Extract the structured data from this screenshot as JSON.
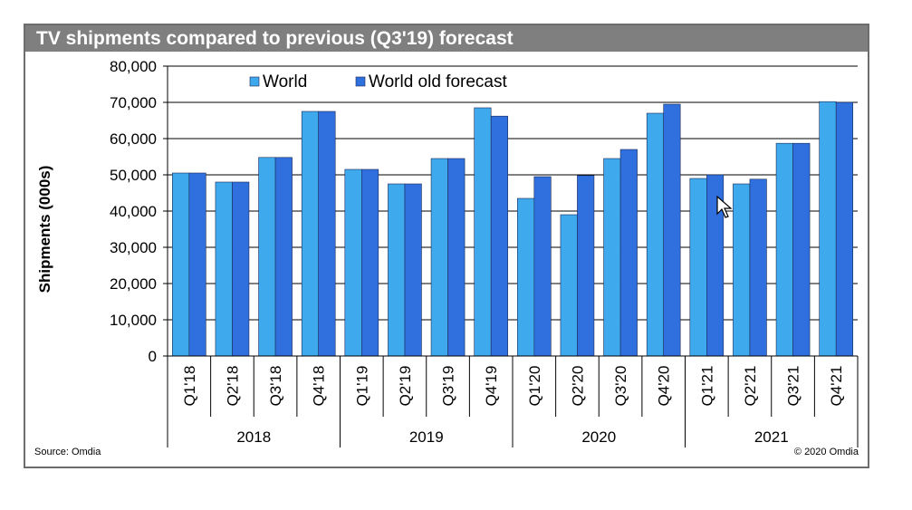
{
  "title": "TV shipments compared to previous (Q3'19) forecast",
  "source": "Source: Omdia",
  "copyright": "© 2020 Omdia",
  "colors": {
    "world": "#3fa9ee",
    "world_old_forecast": "#2f6fde",
    "title_bar": "#7f7f7f"
  },
  "chart_data": {
    "type": "bar",
    "title": "TV shipments compared to previous (Q3'19) forecast",
    "ylabel": "Shipments (000s)",
    "xlabel": "",
    "ylim": [
      0,
      80000
    ],
    "yticks": [
      "0",
      "10,000",
      "20,000",
      "30,000",
      "40,000",
      "50,000",
      "60,000",
      "70,000",
      "80,000"
    ],
    "categories": [
      "Q1'18",
      "Q2'18",
      "Q3'18",
      "Q4'18",
      "Q1'19",
      "Q2'19",
      "Q3'19",
      "Q4'19",
      "Q1'20",
      "Q2'20",
      "Q3'20",
      "Q4'20",
      "Q1'21",
      "Q2'21",
      "Q3'21",
      "Q4'21"
    ],
    "groups": [
      {
        "label": "2018",
        "count": 4
      },
      {
        "label": "2019",
        "count": 4
      },
      {
        "label": "2020",
        "count": 4
      },
      {
        "label": "2021",
        "count": 4
      }
    ],
    "series": [
      {
        "name": "World",
        "values": [
          50500,
          48000,
          54800,
          67500,
          51500,
          47500,
          54500,
          68500,
          43500,
          39000,
          54500,
          67000,
          49000,
          47500,
          58700,
          70200
        ]
      },
      {
        "name": "World old forecast",
        "values": [
          50500,
          48000,
          54800,
          67500,
          51500,
          47500,
          54500,
          66200,
          49500,
          49800,
          57000,
          69500,
          50000,
          48800,
          58700,
          70000
        ]
      }
    ],
    "legend": "top-left inside plot",
    "grid": true
  }
}
